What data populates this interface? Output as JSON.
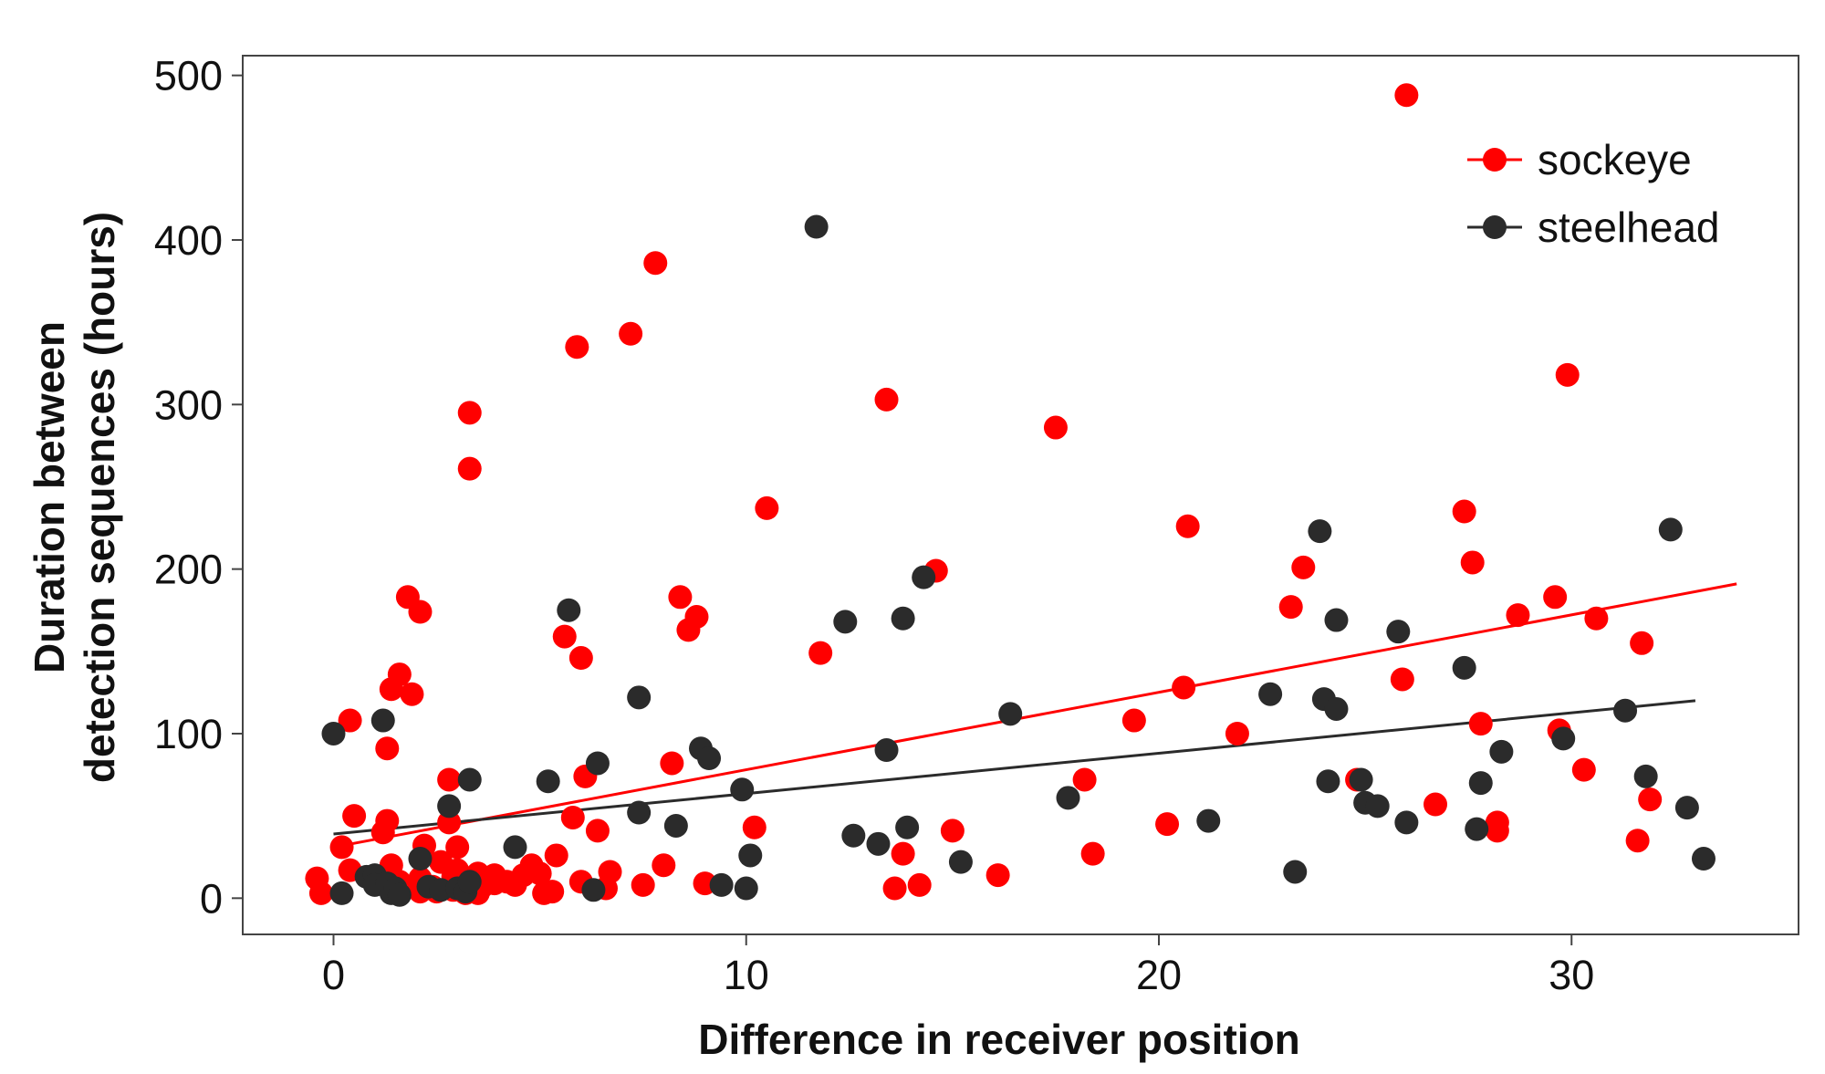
{
  "chart_data": {
    "type": "scatter",
    "title": "",
    "xlabel": "Difference in receiver position",
    "ylabel_lines": [
      "Duration between",
      "detection sequences (hours)"
    ],
    "xlim": [
      -2.2,
      35.5
    ],
    "ylim": [
      -22,
      512
    ],
    "x_ticks": [
      0,
      10,
      20,
      30
    ],
    "x_tick_labels": [
      "0",
      "10",
      "20",
      "30"
    ],
    "y_ticks": [
      0,
      100,
      200,
      300,
      400,
      500
    ],
    "y_tick_labels": [
      "0",
      "100",
      "200",
      "300",
      "400",
      "500"
    ],
    "grid": false,
    "legend_position": "top-right",
    "series": [
      {
        "name": "sockeye",
        "color": "#ff0000",
        "trend": {
          "x": [
            0,
            34
          ],
          "y": [
            31,
            191
          ]
        },
        "points": [
          [
            -0.4,
            12
          ],
          [
            -0.3,
            3
          ],
          [
            0.2,
            31
          ],
          [
            0.4,
            108
          ],
          [
            0.5,
            50
          ],
          [
            0.4,
            17
          ],
          [
            1.2,
            40
          ],
          [
            1.3,
            47
          ],
          [
            1.3,
            91
          ],
          [
            1.4,
            127
          ],
          [
            1.4,
            20
          ],
          [
            1.6,
            136
          ],
          [
            1.6,
            5
          ],
          [
            1.6,
            10
          ],
          [
            1.8,
            183
          ],
          [
            1.9,
            124
          ],
          [
            2.1,
            4
          ],
          [
            2.1,
            8
          ],
          [
            2.1,
            12
          ],
          [
            2.1,
            174
          ],
          [
            2.2,
            32
          ],
          [
            2.4,
            7
          ],
          [
            2.5,
            4
          ],
          [
            2.6,
            22
          ],
          [
            2.8,
            46
          ],
          [
            2.8,
            72
          ],
          [
            2.9,
            13
          ],
          [
            2.9,
            5
          ],
          [
            3.0,
            17
          ],
          [
            3.0,
            31
          ],
          [
            3.1,
            8
          ],
          [
            3.2,
            3
          ],
          [
            3.2,
            6
          ],
          [
            3.3,
            261
          ],
          [
            3.3,
            295
          ],
          [
            3.4,
            10
          ],
          [
            3.5,
            3
          ],
          [
            3.5,
            15
          ],
          [
            3.6,
            7
          ],
          [
            3.9,
            9
          ],
          [
            3.9,
            14
          ],
          [
            4.2,
            10
          ],
          [
            4.4,
            8
          ],
          [
            4.6,
            14
          ],
          [
            4.8,
            20
          ],
          [
            5.0,
            15
          ],
          [
            5.1,
            3
          ],
          [
            5.3,
            4
          ],
          [
            5.4,
            26
          ],
          [
            5.6,
            159
          ],
          [
            5.8,
            49
          ],
          [
            5.9,
            335
          ],
          [
            6.0,
            146
          ],
          [
            6.0,
            10
          ],
          [
            6.1,
            74
          ],
          [
            6.4,
            41
          ],
          [
            6.6,
            6
          ],
          [
            6.7,
            16
          ],
          [
            7.2,
            343
          ],
          [
            7.5,
            8
          ],
          [
            7.8,
            386
          ],
          [
            8.0,
            20
          ],
          [
            8.2,
            82
          ],
          [
            8.4,
            183
          ],
          [
            8.6,
            163
          ],
          [
            8.8,
            171
          ],
          [
            9.0,
            9
          ],
          [
            10.2,
            43
          ],
          [
            10.5,
            237
          ],
          [
            11.8,
            149
          ],
          [
            13.4,
            303
          ],
          [
            13.6,
            6
          ],
          [
            13.8,
            27
          ],
          [
            14.2,
            8
          ],
          [
            14.6,
            199
          ],
          [
            15.0,
            41
          ],
          [
            16.1,
            14
          ],
          [
            17.5,
            286
          ],
          [
            18.2,
            72
          ],
          [
            18.4,
            27
          ],
          [
            19.4,
            108
          ],
          [
            20.2,
            45
          ],
          [
            20.6,
            128
          ],
          [
            20.7,
            226
          ],
          [
            21.9,
            100
          ],
          [
            23.2,
            177
          ],
          [
            23.5,
            201
          ],
          [
            24.8,
            72
          ],
          [
            25.9,
            133
          ],
          [
            26.0,
            488
          ],
          [
            26.7,
            57
          ],
          [
            27.4,
            235
          ],
          [
            27.6,
            204
          ],
          [
            27.8,
            106
          ],
          [
            28.2,
            41
          ],
          [
            28.2,
            46
          ],
          [
            28.7,
            172
          ],
          [
            29.6,
            183
          ],
          [
            29.7,
            102
          ],
          [
            29.9,
            318
          ],
          [
            30.3,
            78
          ],
          [
            30.6,
            170
          ],
          [
            31.6,
            35
          ],
          [
            31.7,
            155
          ],
          [
            31.9,
            60
          ]
        ]
      },
      {
        "name": "steelhead",
        "color": "#2b2b2b",
        "trend": {
          "x": [
            0,
            33
          ],
          "y": [
            39,
            120
          ]
        },
        "points": [
          [
            0.0,
            100
          ],
          [
            0.2,
            3
          ],
          [
            0.8,
            13
          ],
          [
            1.0,
            14
          ],
          [
            1.0,
            8
          ],
          [
            1.2,
            108
          ],
          [
            1.3,
            9
          ],
          [
            1.4,
            3
          ],
          [
            1.5,
            6
          ],
          [
            1.6,
            2
          ],
          [
            2.1,
            24
          ],
          [
            2.3,
            7
          ],
          [
            2.6,
            5
          ],
          [
            2.8,
            56
          ],
          [
            3.0,
            6
          ],
          [
            3.2,
            4
          ],
          [
            3.3,
            72
          ],
          [
            3.3,
            10
          ],
          [
            4.4,
            31
          ],
          [
            5.2,
            71
          ],
          [
            5.7,
            175
          ],
          [
            6.3,
            5
          ],
          [
            6.4,
            82
          ],
          [
            7.4,
            122
          ],
          [
            7.4,
            52
          ],
          [
            8.3,
            44
          ],
          [
            8.9,
            91
          ],
          [
            9.1,
            85
          ],
          [
            9.4,
            8
          ],
          [
            9.9,
            66
          ],
          [
            10.0,
            6
          ],
          [
            10.1,
            26
          ],
          [
            11.7,
            408
          ],
          [
            12.4,
            168
          ],
          [
            12.6,
            38
          ],
          [
            13.2,
            33
          ],
          [
            13.4,
            90
          ],
          [
            13.8,
            170
          ],
          [
            13.9,
            43
          ],
          [
            14.3,
            195
          ],
          [
            15.2,
            22
          ],
          [
            16.4,
            112
          ],
          [
            17.8,
            61
          ],
          [
            21.2,
            47
          ],
          [
            22.7,
            124
          ],
          [
            23.3,
            16
          ],
          [
            23.9,
            223
          ],
          [
            24.0,
            121
          ],
          [
            24.1,
            71
          ],
          [
            24.3,
            115
          ],
          [
            24.3,
            169
          ],
          [
            24.9,
            72
          ],
          [
            25.0,
            58
          ],
          [
            25.3,
            56
          ],
          [
            25.8,
            162
          ],
          [
            26.0,
            46
          ],
          [
            27.4,
            140
          ],
          [
            27.7,
            42
          ],
          [
            27.8,
            70
          ],
          [
            28.3,
            89
          ],
          [
            29.8,
            97
          ],
          [
            31.3,
            114
          ],
          [
            31.8,
            74
          ],
          [
            32.4,
            224
          ],
          [
            32.8,
            55
          ],
          [
            33.2,
            24
          ]
        ]
      }
    ]
  }
}
